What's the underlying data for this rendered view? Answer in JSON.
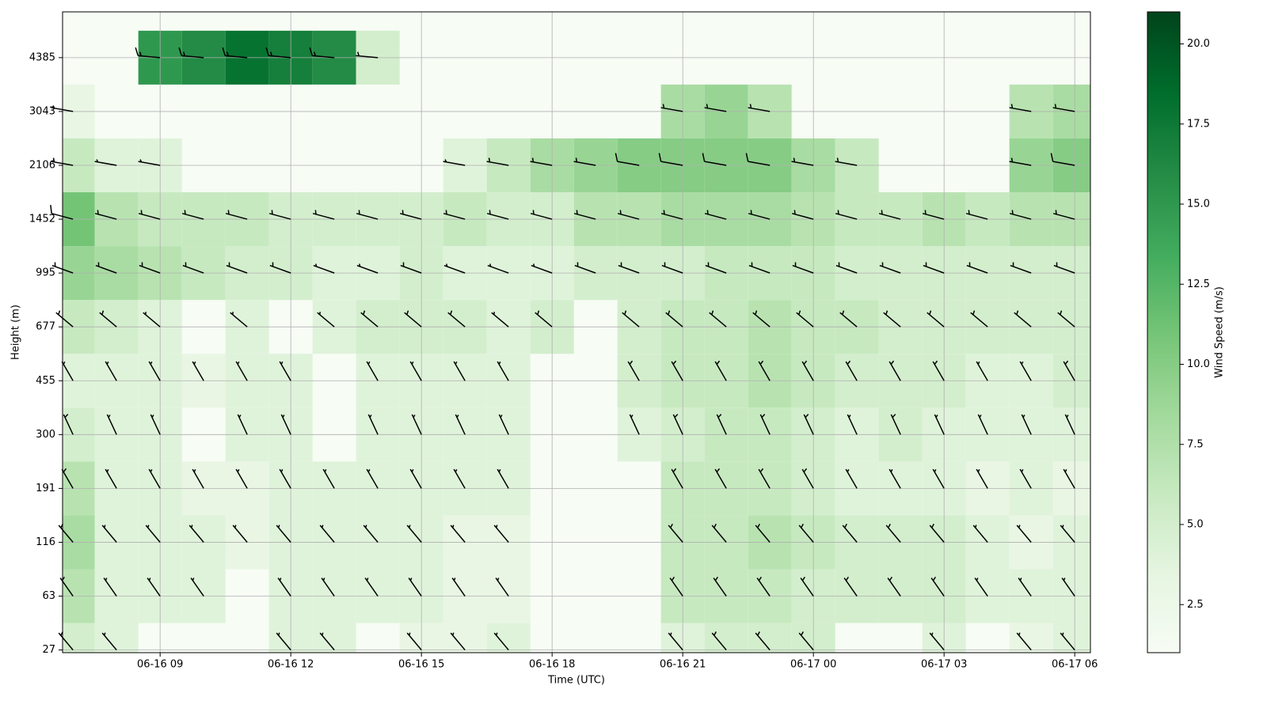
{
  "chart_data": {
    "type": "barb-heatmap",
    "xlabel": "Time (UTC)",
    "ylabel": "Height (m)",
    "colorbar_label": "Wind Speed (m/s)",
    "colormap": [
      "#f7fcf5",
      "#e5f5e0",
      "#c7e9c0",
      "#a1d99b",
      "#74c476",
      "#41ab5d",
      "#238b45",
      "#006d2c",
      "#00441b"
    ],
    "barb_color": "#000000",
    "grid": true,
    "x": [
      7,
      8,
      9,
      10,
      11,
      12,
      13,
      14,
      15,
      16,
      17,
      18,
      19,
      20,
      21,
      22,
      23,
      24,
      25,
      26,
      27,
      28,
      29,
      30
    ],
    "xlim": [
      6.76,
      30.36
    ],
    "xticks": [
      {
        "value": 9,
        "label": "06-16 09"
      },
      {
        "value": 12,
        "label": "06-16 12"
      },
      {
        "value": 15,
        "label": "06-16 15"
      },
      {
        "value": 18,
        "label": "06-16 18"
      },
      {
        "value": 21,
        "label": "06-16 21"
      },
      {
        "value": 24,
        "label": "06-17 00"
      },
      {
        "value": 27,
        "label": "06-17 03"
      },
      {
        "value": 30,
        "label": "06-17 06"
      }
    ],
    "y_categories": [
      "27",
      "63",
      "116",
      "191",
      "300",
      "455",
      "677",
      "995",
      "1452",
      "2106",
      "3043",
      "4385"
    ],
    "ylim": [
      -0.05,
      11.85
    ],
    "clim": [
      1.0,
      21.0
    ],
    "cticks": [
      {
        "value": 2.5,
        "label": "2.5"
      },
      {
        "value": 5,
        "label": "5.0"
      },
      {
        "value": 7.5,
        "label": "7.5"
      },
      {
        "value": 10,
        "label": "10.0"
      },
      {
        "value": 12.5,
        "label": "12.5"
      },
      {
        "value": 15,
        "label": "15.0"
      },
      {
        "value": 17.5,
        "label": "17.5"
      },
      {
        "value": 20,
        "label": "20.0"
      }
    ],
    "directions": [
      320,
      325,
      320,
      330,
      335,
      330,
      310,
      290,
      285,
      280,
      280,
      275
    ],
    "speed": [
      [
        5,
        4,
        null,
        null,
        null,
        4,
        4,
        null,
        3,
        3,
        4,
        null,
        null,
        null,
        4,
        5,
        5,
        5,
        null,
        null,
        4,
        null,
        3,
        4
      ],
      [
        7,
        4,
        4,
        4,
        null,
        4,
        4,
        4,
        4,
        3,
        3,
        null,
        null,
        null,
        6,
        6,
        6,
        5,
        5,
        5,
        5,
        4,
        4,
        4
      ],
      [
        8,
        4,
        4,
        4,
        3,
        4,
        4,
        4,
        4,
        3,
        3,
        null,
        null,
        null,
        6,
        6,
        7,
        6,
        5,
        5,
        5,
        4,
        3,
        4
      ],
      [
        7,
        4,
        4,
        3,
        3,
        4,
        4,
        4,
        4,
        4,
        4,
        null,
        null,
        null,
        6,
        6,
        6,
        5,
        4,
        4,
        4,
        3,
        4,
        3
      ],
      [
        5,
        4,
        4,
        null,
        4,
        4,
        null,
        4,
        4,
        4,
        4,
        null,
        null,
        4,
        5,
        6,
        6,
        5,
        4,
        5,
        4,
        4,
        4,
        4
      ],
      [
        4,
        4,
        4,
        3,
        4,
        4,
        null,
        4,
        4,
        4,
        4,
        null,
        null,
        5,
        6,
        6,
        7,
        6,
        5,
        5,
        5,
        4,
        4,
        5
      ],
      [
        6,
        5,
        4,
        null,
        4,
        null,
        4,
        5,
        5,
        5,
        4,
        5,
        null,
        5,
        6,
        6,
        7,
        6,
        6,
        5,
        5,
        5,
        5,
        5
      ],
      [
        9,
        8,
        7,
        6,
        5,
        5,
        4,
        4,
        5,
        4,
        4,
        4,
        5,
        5,
        5,
        6,
        6,
        6,
        5,
        5,
        5,
        5,
        5,
        5
      ],
      [
        11,
        7,
        6,
        6,
        6,
        5,
        5,
        5,
        5,
        6,
        5,
        5,
        7,
        7,
        8,
        8,
        8,
        7,
        6,
        6,
        7,
        6,
        7,
        7
      ],
      [
        6,
        4,
        4,
        null,
        null,
        null,
        null,
        null,
        null,
        4,
        6,
        8,
        9,
        10,
        10,
        10,
        10,
        8,
        6,
        null,
        null,
        null,
        9,
        10
      ],
      [
        3,
        null,
        null,
        null,
        null,
        null,
        null,
        null,
        null,
        null,
        null,
        null,
        null,
        null,
        8,
        9,
        7,
        null,
        null,
        null,
        null,
        null,
        7,
        8
      ],
      [
        null,
        null,
        15,
        16,
        18,
        17,
        16,
        5,
        null,
        null,
        null,
        null,
        null,
        null,
        null,
        null,
        null,
        null,
        null,
        null,
        null,
        null,
        null,
        null
      ]
    ]
  }
}
